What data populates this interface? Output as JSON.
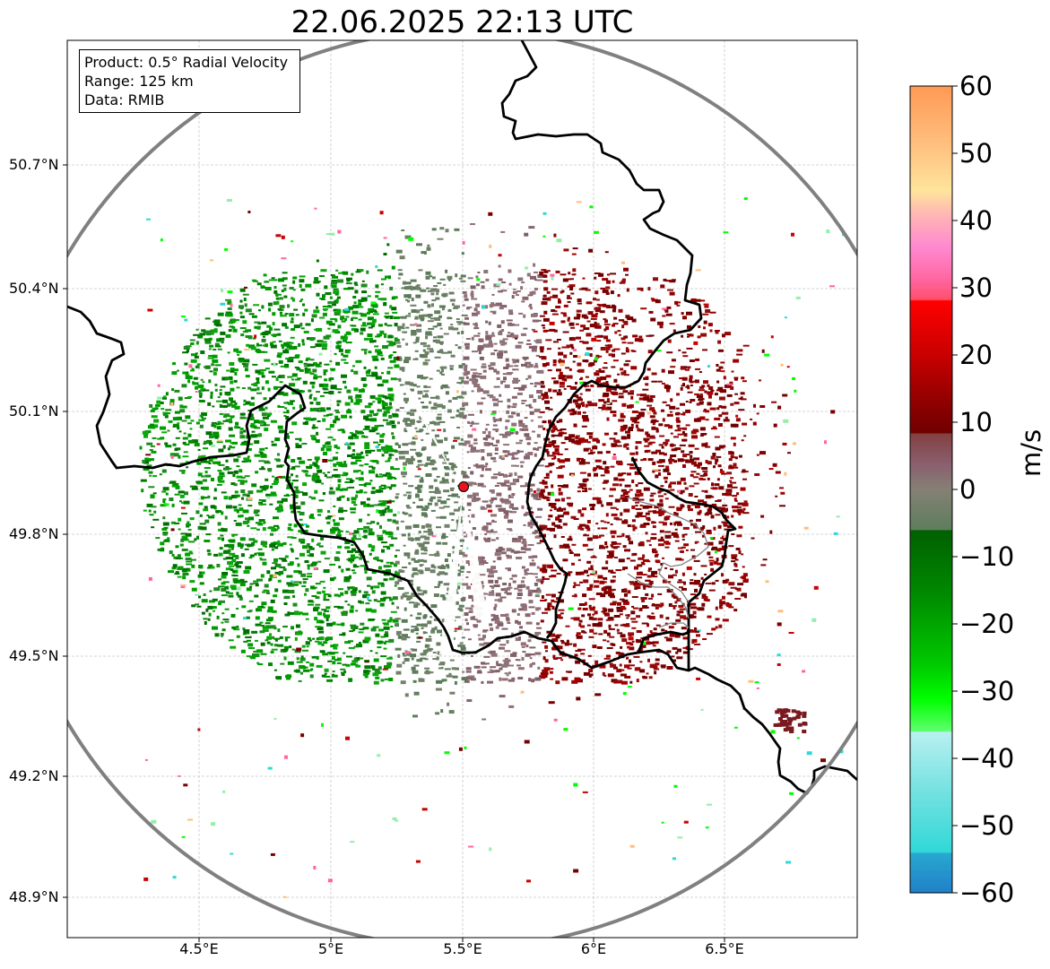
{
  "title": "22.06.2025 22:13 UTC",
  "info_box": {
    "product": "Product: 0.5° Radial Velocity",
    "range": "Range: 125 km",
    "data": "Data: RMIB"
  },
  "map": {
    "lon_range": [
      4.0,
      7.0
    ],
    "lat_range": [
      48.8,
      51.0
    ],
    "lat_ticks": [
      "50.7°N",
      "50.4°N",
      "50.1°N",
      "49.8°N",
      "49.5°N",
      "49.2°N",
      "48.9°N"
    ],
    "lon_ticks": [
      "4.5°E",
      "5°E",
      "5.5°E",
      "6°E",
      "6.5°E"
    ],
    "radar_site": {
      "lon": 5.505,
      "lat": 49.914
    },
    "range_km": 125,
    "gridlines": true
  },
  "colorbar": {
    "label": "m/s",
    "min": -60,
    "max": 60,
    "ticks": [
      "60",
      "50",
      "40",
      "30",
      "20",
      "10",
      "0",
      "−10",
      "−20",
      "−30",
      "−40",
      "−50",
      "−60"
    ]
  },
  "colors": {
    "range_ring": "#808080",
    "border": "#000000",
    "radar_dot": "#e8141c",
    "grid": "#c8c8c8"
  }
}
